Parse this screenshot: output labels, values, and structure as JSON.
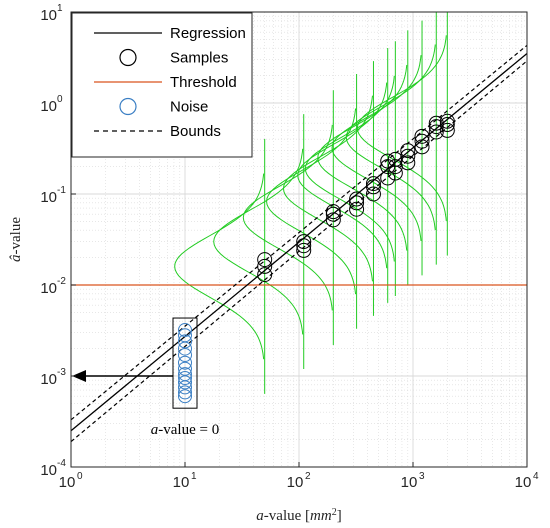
{
  "chart_data": {
    "type": "scatter",
    "xscale": "log",
    "yscale": "log",
    "xlim": [
      1,
      10000
    ],
    "ylim": [
      0.0001,
      10
    ],
    "grid": true,
    "x_ticks": [
      {
        "base": "10",
        "exp": "0"
      },
      {
        "base": "10",
        "exp": "1"
      },
      {
        "base": "10",
        "exp": "2"
      },
      {
        "base": "10",
        "exp": "3"
      },
      {
        "base": "10",
        "exp": "4"
      }
    ],
    "y_ticks": [
      {
        "base": "10",
        "exp": "-4"
      },
      {
        "base": "10",
        "exp": "-3"
      },
      {
        "base": "10",
        "exp": "-2"
      },
      {
        "base": "10",
        "exp": "-1"
      },
      {
        "base": "10",
        "exp": "0"
      },
      {
        "base": "10",
        "exp": "1"
      }
    ],
    "xlabel": {
      "var": "a",
      "text": "-value [",
      "unit": "mm",
      "exp": "2",
      "close": "]"
    },
    "ylabel": {
      "var": "â",
      "text": "-value"
    },
    "legend": {
      "placement": "top-left",
      "entries": [
        "Regression",
        "Samples",
        "Threshold",
        "Noise",
        "Bounds"
      ]
    },
    "annotation": {
      "var": "a",
      "text": "-value = 0"
    },
    "threshold": 0.01,
    "regression": {
      "points": [
        [
          1,
          0.00025
        ],
        [
          10000,
          3.5
        ]
      ]
    },
    "bounds": {
      "upper": [
        [
          1,
          0.00033
        ],
        [
          10000,
          4.3
        ]
      ],
      "lower": [
        [
          1,
          0.00019
        ],
        [
          10000,
          2.9
        ]
      ]
    },
    "samples": [
      {
        "x": 50,
        "y": [
          0.013,
          0.016,
          0.019
        ]
      },
      {
        "x": 110,
        "y": [
          0.024,
          0.027,
          0.03
        ]
      },
      {
        "x": 200,
        "y": [
          0.052,
          0.06,
          0.064
        ]
      },
      {
        "x": 320,
        "y": [
          0.068,
          0.08,
          0.088
        ]
      },
      {
        "x": 450,
        "y": [
          0.1,
          0.12,
          0.13
        ]
      },
      {
        "x": 600,
        "y": [
          0.15,
          0.2,
          0.23
        ]
      },
      {
        "x": 700,
        "y": [
          0.17,
          0.2,
          0.24
        ]
      },
      {
        "x": 900,
        "y": [
          0.22,
          0.26,
          0.3
        ]
      },
      {
        "x": 1200,
        "y": [
          0.33,
          0.38,
          0.43
        ]
      },
      {
        "x": 1600,
        "y": [
          0.48,
          0.55,
          0.6
        ]
      },
      {
        "x": 2000,
        "y": [
          0.5,
          0.58,
          0.63
        ]
      }
    ],
    "noise": {
      "x": 10,
      "y": [
        0.0006,
        0.00066,
        0.00075,
        0.00085,
        0.00095,
        0.00105,
        0.0012,
        0.0014,
        0.0017,
        0.002,
        0.0024,
        0.0028,
        0.0032
      ]
    },
    "pdf_curves": [
      {
        "x": 50,
        "y": 0.016
      },
      {
        "x": 110,
        "y": 0.03
      },
      {
        "x": 200,
        "y": 0.055
      },
      {
        "x": 320,
        "y": 0.083
      },
      {
        "x": 450,
        "y": 0.115
      },
      {
        "x": 600,
        "y": 0.16
      },
      {
        "x": 700,
        "y": 0.19
      },
      {
        "x": 900,
        "y": 0.25
      },
      {
        "x": 1200,
        "y": 0.32
      },
      {
        "x": 1600,
        "y": 0.42
      },
      {
        "x": 2000,
        "y": 0.53
      }
    ],
    "arrow": {
      "from_x": 10,
      "to_x": 1,
      "y": 0.001
    },
    "colors": {
      "regression": "#000000",
      "samples": "#000000",
      "threshold": "#d9531e",
      "noise": "#3b7fc4",
      "bounds": "#000000",
      "pdf": "#22cc22",
      "grid": "#d9d9d9"
    }
  }
}
